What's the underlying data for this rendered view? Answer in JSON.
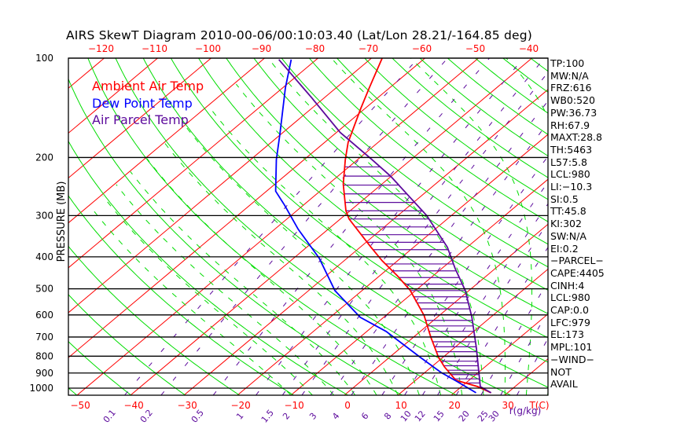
{
  "chart_data": {
    "type": "line",
    "subtype": "skew-t log-p",
    "title": "AIRS SkewT Diagram 2010-00-06/00:10:03.40 (Lat/Lon 28.21/-164.85 deg)",
    "ylabel": "PRESSURE (MB)",
    "xlabel": "T(C)",
    "mixing_ratio_label": "r(g/kg)",
    "ylim": [
      1050,
      100
    ],
    "pressure_ticks": [
      100,
      200,
      300,
      400,
      500,
      600,
      700,
      800,
      900,
      1000
    ],
    "top_temp_ticks": [
      -120,
      -110,
      -100,
      -90,
      -80,
      -70,
      -60,
      -50,
      -40
    ],
    "bottom_temp_ticks": [
      -50,
      -40,
      -30,
      -20,
      -10,
      0,
      10,
      20,
      30
    ],
    "mixing_ratio_ticks": [
      "0.1",
      "0.2",
      "0.5",
      "1",
      "1.5",
      "2",
      "3",
      "4",
      "6",
      "8",
      "10",
      "12",
      "15",
      "20",
      "25",
      "30"
    ],
    "colors": {
      "isotherm": "#ff0000",
      "dry_adiabat": "#00dd00",
      "moist_adiabat": "#00dd00",
      "mixing_ratio": "#5c0a9c",
      "isobar": "#000000",
      "hatch": "#5c0a9c"
    },
    "series": [
      {
        "name": "Ambient Air Temp",
        "color": "#ff0000",
        "points": [
          [
            1033,
            26.9
          ],
          [
            989,
            23.0
          ],
          [
            946,
            17.5
          ],
          [
            862,
            12.4
          ],
          [
            807,
            9.2
          ],
          [
            700,
            3.2
          ],
          [
            603,
            -2.8
          ],
          [
            506,
            -11.0
          ],
          [
            458,
            -16.5
          ],
          [
            411,
            -22.9
          ],
          [
            374,
            -28.0
          ],
          [
            307,
            -38.4
          ],
          [
            290,
            -40.8
          ],
          [
            241,
            -47.2
          ],
          [
            203,
            -52.3
          ],
          [
            180,
            -55.6
          ],
          [
            142,
            -60.8
          ],
          [
            123,
            -63.8
          ],
          [
            100,
            -68.0
          ]
        ]
      },
      {
        "name": "Dew Point Temp",
        "color": "#0000ff",
        "points": [
          [
            1033,
            24.1
          ],
          [
            952,
            17.8
          ],
          [
            896,
            13.0
          ],
          [
            807,
            5.8
          ],
          [
            673,
            -6.4
          ],
          [
            610,
            -14.4
          ],
          [
            506,
            -25.1
          ],
          [
            404,
            -35.2
          ],
          [
            330,
            -45.6
          ],
          [
            279,
            -53.5
          ],
          [
            253,
            -58.3
          ],
          [
            203,
            -65.2
          ],
          [
            170,
            -70.2
          ],
          [
            123,
            -79.5
          ],
          [
            101,
            -84.7
          ]
        ]
      },
      {
        "name": "Air Parcel Temp",
        "color": "#5c0a9c",
        "points": [
          [
            1033,
            26.9
          ],
          [
            989,
            23.5
          ],
          [
            936,
            21.6
          ],
          [
            752,
            14.0
          ],
          [
            610,
            6.5
          ],
          [
            506,
            -0.7
          ],
          [
            434,
            -7.5
          ],
          [
            374,
            -13.7
          ],
          [
            300,
            -24.6
          ],
          [
            265,
            -31.6
          ],
          [
            228,
            -40.1
          ],
          [
            203,
            -47.3
          ],
          [
            168,
            -59.3
          ],
          [
            132,
            -72.3
          ],
          [
            101,
            -87.0
          ]
        ]
      }
    ],
    "cape_hatch_pressure_range": [
      200,
      1000
    ]
  },
  "indices": [
    "TP:100",
    "MW:N/A",
    "FRZ:616",
    "WB0:520",
    "PW:36.73",
    "RH:67.9",
    "MAXT:28.8",
    "TH:5463",
    "L57:5.8",
    "LCL:980",
    "LI:−10.3",
    "SI:0.5",
    "TT:45.8",
    "KI:302",
    "SW:N/A",
    "EI:0.2",
    "−PARCEL−",
    "CAPE:4405",
    "CINH:4",
    "LCL:980",
    "CAP:0.0",
    "LFC:979",
    "EL:173",
    "MPL:101",
    "−WIND−",
    " NOT",
    "AVAIL"
  ]
}
